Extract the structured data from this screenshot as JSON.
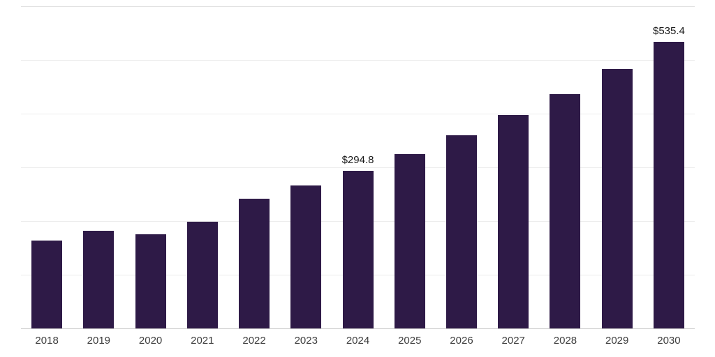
{
  "chart_data": {
    "type": "bar",
    "title": "",
    "xlabel": "",
    "ylabel": "",
    "categories": [
      "2018",
      "2019",
      "2020",
      "2021",
      "2022",
      "2023",
      "2024",
      "2025",
      "2026",
      "2027",
      "2028",
      "2029",
      "2030"
    ],
    "values": [
      165,
      183,
      176,
      200,
      243,
      267,
      294.8,
      326,
      361,
      399,
      438,
      485,
      535.4
    ],
    "data_labels": [
      "",
      "",
      "",
      "",
      "",
      "",
      "$294.8",
      "",
      "",
      "",
      "",
      "",
      "$535.4"
    ],
    "ylim": [
      0,
      600
    ],
    "gridline_values": [
      100,
      200,
      300,
      400,
      500,
      600
    ],
    "grid": true,
    "legend": false,
    "bar_color": "#2e1a47",
    "gridline_color": "#ececec",
    "axis_line_color": "#c9c9c9",
    "label_color": "#1a1a1a",
    "tick_label_color": "#3d3d3d"
  }
}
